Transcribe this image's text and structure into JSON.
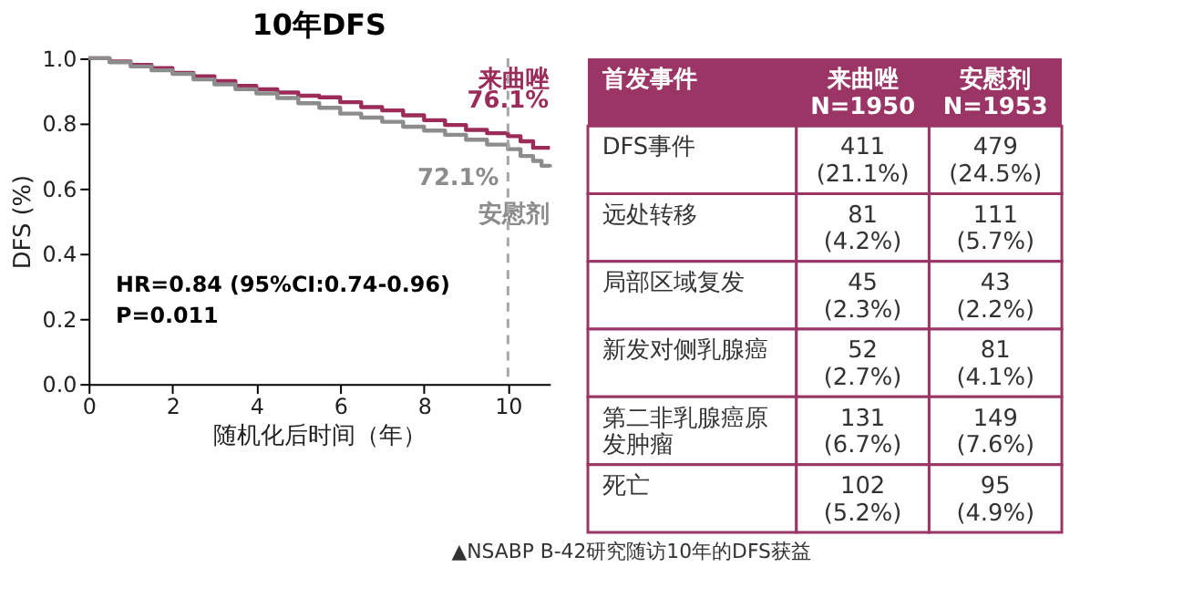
{
  "chart_data": [
    {
      "type": "step",
      "title": "10年DFS",
      "xlabel": "随机化后时间（年）",
      "ylabel": "DFS (%)",
      "xlim": [
        0,
        11
      ],
      "xticks": [
        0,
        2,
        4,
        6,
        8,
        10
      ],
      "ylim": [
        0,
        1
      ],
      "yticks": [
        {
          "value": 0,
          "label": "0.0"
        },
        0.2,
        0.4,
        0.6,
        0.8,
        {
          "value": 1,
          "label": "1.0"
        }
      ],
      "grid": false,
      "legend": false,
      "series": [
        {
          "name": "来曲唑",
          "color": "#9b2c5a",
          "x": [
            0,
            0.5,
            1,
            1.5,
            2,
            2.5,
            3,
            3.5,
            4,
            4.5,
            5,
            5.5,
            6,
            6.5,
            7,
            7.5,
            8,
            8.5,
            9,
            9.5,
            10,
            10.3,
            10.6,
            11
          ],
          "values": [
            1.0,
            0.99,
            0.98,
            0.97,
            0.955,
            0.945,
            0.93,
            0.915,
            0.905,
            0.895,
            0.885,
            0.88,
            0.865,
            0.85,
            0.84,
            0.825,
            0.81,
            0.795,
            0.78,
            0.77,
            0.761,
            0.745,
            0.725,
            0.725
          ]
        },
        {
          "name": "安慰剂",
          "color": "#8c8c8c",
          "x": [
            0,
            0.5,
            1,
            1.5,
            2,
            2.5,
            3,
            3.5,
            4,
            4.5,
            5,
            5.5,
            6,
            6.5,
            7,
            7.5,
            8,
            8.5,
            9,
            9.5,
            10,
            10.3,
            10.6,
            10.8,
            11
          ],
          "values": [
            1.0,
            0.988,
            0.975,
            0.963,
            0.952,
            0.935,
            0.92,
            0.905,
            0.892,
            0.878,
            0.862,
            0.848,
            0.83,
            0.818,
            0.805,
            0.79,
            0.778,
            0.765,
            0.75,
            0.735,
            0.721,
            0.7,
            0.685,
            0.67,
            0.665
          ]
        }
      ],
      "ref_lines": [
        {
          "axis": "x",
          "value": 10,
          "color": "#a6a6a6",
          "line_style": "dashed"
        }
      ],
      "annotations": [
        {
          "text": "76.1%",
          "x": 10,
          "y": 0.761
        },
        {
          "text": "72.1%",
          "x": 10,
          "y": 0.721
        },
        "HR=0.84  (95%CI:0.74-0.96)",
        "P=0.011"
      ]
    },
    {
      "type": "other",
      "color": "#9b3566",
      "categories": [
        "首发事件",
        "来曲唑\nN=1950",
        "安慰剂\nN=1953"
      ],
      "y_categories": [
        "DFS事件",
        "远处转移",
        "局部区域复发",
        "新发对侧乳腺癌",
        "第二非乳腺癌原发肿瘤",
        "死亡"
      ],
      "cell_labels": [
        [
          "411\n(21.1%)",
          "479\n(24.5%)"
        ],
        [
          "81\n(4.2%)",
          "111\n(5.7%)"
        ],
        [
          "45\n(2.3%)",
          "43\n(2.2%)"
        ],
        [
          "52\n(2.7%)",
          "81\n(4.1%)"
        ],
        [
          "131\n(6.7%)",
          "149\n(7.6%)"
        ],
        [
          "102\n(5.2%)",
          "95\n(4.9%)"
        ]
      ],
      "annotations": [
        "▲NSABP B-42研究随访10年的DFS获益"
      ]
    }
  ]
}
